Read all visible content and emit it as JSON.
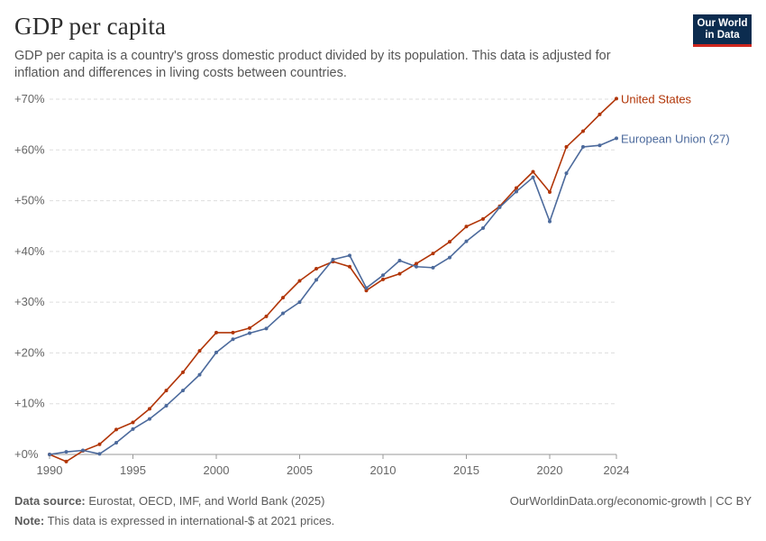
{
  "header": {
    "title": "GDP per capita",
    "subtitle": "GDP per capita is a country's gross domestic product divided by its population. This data is adjusted for inflation and differences in living costs between countries.",
    "logo_line1": "Our World",
    "logo_line2": "in Data"
  },
  "footer": {
    "source_label": "Data source:",
    "source_text": "Eurostat, OECD, IMF, and World Bank (2025)",
    "note_label": "Note:",
    "note_text": "This data is expressed in international-$ at 2021 prices.",
    "attribution": "OurWorldinData.org/economic-growth | CC BY"
  },
  "colors": {
    "us": "#b13507",
    "eu": "#4c6a9c",
    "grid": "#dddddd",
    "axis_text": "#666666"
  },
  "chart_data": {
    "type": "line",
    "ylim": [
      0,
      70
    ],
    "xlim": [
      1990,
      2024
    ],
    "y_ticks": [
      {
        "value": 0,
        "label": "+0%"
      },
      {
        "value": 10,
        "label": "+10%"
      },
      {
        "value": 20,
        "label": "+20%"
      },
      {
        "value": 30,
        "label": "+30%"
      },
      {
        "value": 40,
        "label": "+40%"
      },
      {
        "value": 50,
        "label": "+50%"
      },
      {
        "value": 60,
        "label": "+60%"
      },
      {
        "value": 70,
        "label": "+70%"
      }
    ],
    "x_ticks": [
      {
        "value": 1990,
        "label": "1990"
      },
      {
        "value": 1995,
        "label": "1995"
      },
      {
        "value": 2000,
        "label": "2000"
      },
      {
        "value": 2005,
        "label": "2005"
      },
      {
        "value": 2010,
        "label": "2010"
      },
      {
        "value": 2015,
        "label": "2015"
      },
      {
        "value": 2020,
        "label": "2020"
      },
      {
        "value": 2024,
        "label": "2024"
      }
    ],
    "grid": true,
    "x": [
      1990,
      1991,
      1992,
      1993,
      1994,
      1995,
      1996,
      1997,
      1998,
      1999,
      2000,
      2001,
      2002,
      2003,
      2004,
      2005,
      2006,
      2007,
      2008,
      2009,
      2010,
      2011,
      2012,
      2013,
      2014,
      2015,
      2016,
      2017,
      2018,
      2019,
      2020,
      2021,
      2022,
      2023,
      2024
    ],
    "series": [
      {
        "name": "United States",
        "key": "us",
        "values": [
          0,
          -1.4,
          0.7,
          2.0,
          4.9,
          6.3,
          9.0,
          12.6,
          16.2,
          20.4,
          24.0,
          24.0,
          24.9,
          27.2,
          30.9,
          34.2,
          36.6,
          38.0,
          37.0,
          32.3,
          34.5,
          35.6,
          37.6,
          39.6,
          41.9,
          44.9,
          46.4,
          48.9,
          52.5,
          55.7,
          51.7,
          60.6,
          63.7,
          67.0,
          70.1
        ]
      },
      {
        "name": "European Union (27)",
        "key": "eu",
        "values": [
          0,
          0.5,
          0.8,
          0.1,
          2.3,
          5.0,
          7.0,
          9.6,
          12.6,
          15.7,
          20.1,
          22.7,
          23.9,
          24.8,
          27.8,
          30.0,
          34.4,
          38.4,
          39.2,
          32.8,
          35.3,
          38.2,
          37.0,
          36.8,
          38.8,
          42.0,
          44.6,
          48.7,
          51.8,
          54.6,
          45.9,
          55.4,
          60.6,
          60.9,
          62.3
        ]
      }
    ]
  }
}
